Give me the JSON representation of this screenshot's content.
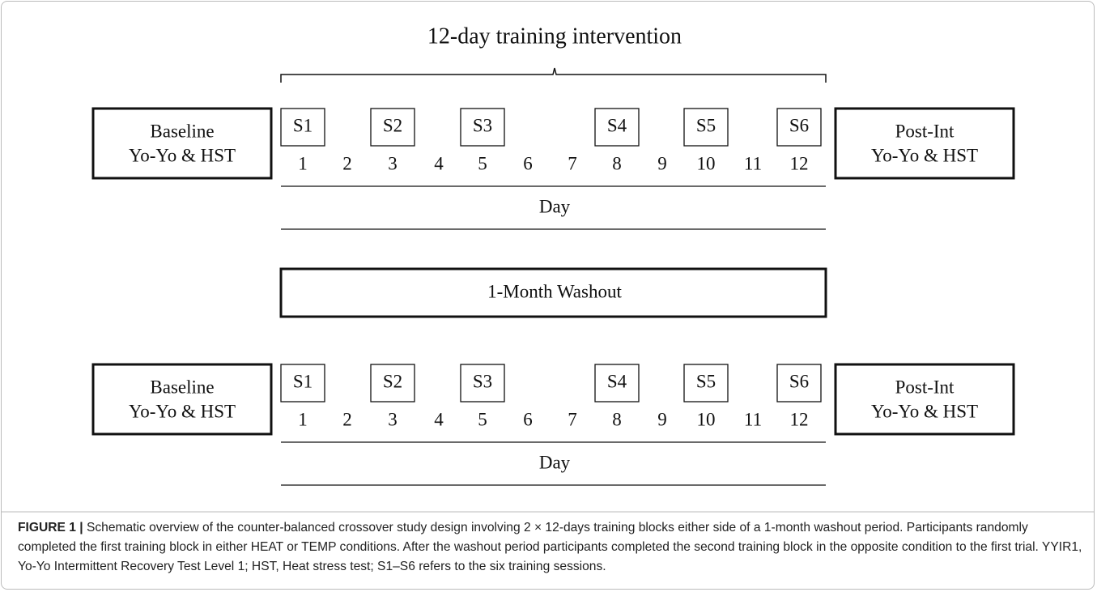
{
  "title": "12-day training intervention",
  "rows": [
    {
      "baseline": [
        "Baseline",
        "Yo-Yo & HST"
      ],
      "sessions": [
        "S1",
        "S2",
        "S3",
        "S4",
        "S5",
        "S6"
      ],
      "days": [
        "1",
        "2",
        "3",
        "4",
        "5",
        "6",
        "7",
        "8",
        "9",
        "10",
        "11",
        "12"
      ],
      "axis_label": "Day",
      "post": [
        "Post-Int",
        "Yo-Yo & HST"
      ]
    },
    {
      "baseline": [
        "Baseline",
        "Yo-Yo & HST"
      ],
      "sessions": [
        "S1",
        "S2",
        "S3",
        "S4",
        "S5",
        "S6"
      ],
      "days": [
        "1",
        "2",
        "3",
        "4",
        "5",
        "6",
        "7",
        "8",
        "9",
        "10",
        "11",
        "12"
      ],
      "axis_label": "Day",
      "post": [
        "Post-Int",
        "Yo-Yo & HST"
      ]
    }
  ],
  "washout": "1-Month Washout",
  "caption": {
    "label": "FIGURE 1 |",
    "text": "Schematic overview of the counter-balanced crossover study design involving 2 × 12-days training blocks either side of a 1-month washout period. Participants randomly completed the first training block in either HEAT or TEMP conditions. After the washout period participants completed the second training block in the opposite condition to the first trial. YYIR1, Yo-Yo Intermittent Recovery Test Level 1; HST, Heat stress test; S1–S6 refers to the six training sessions."
  }
}
